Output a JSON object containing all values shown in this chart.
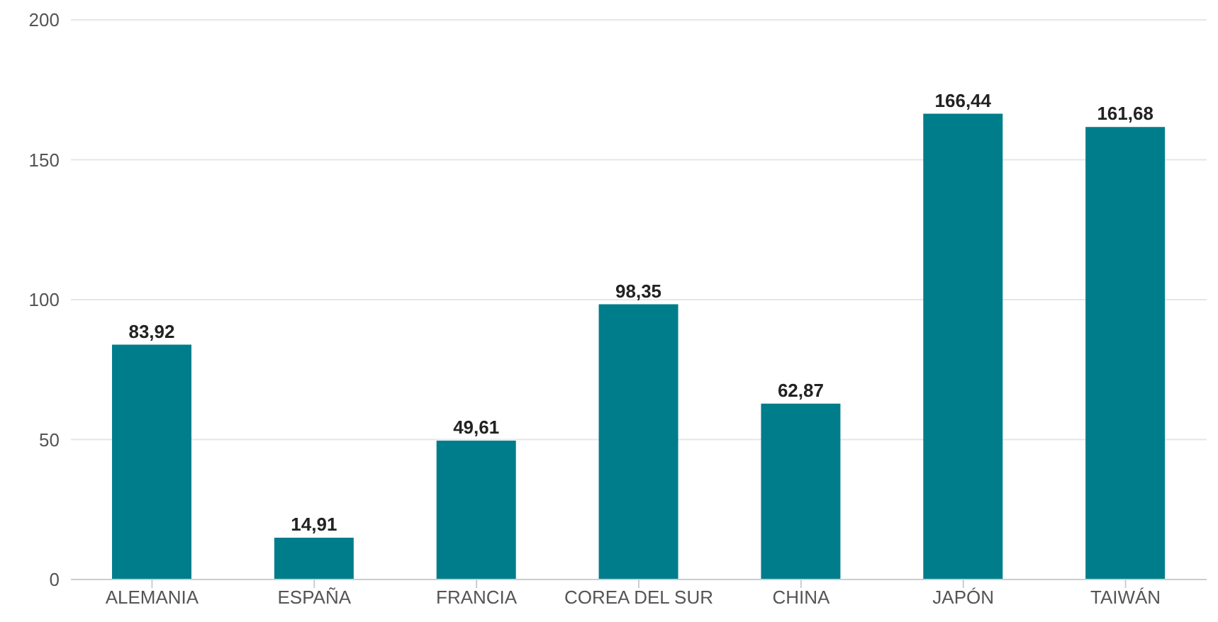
{
  "chart_data": {
    "type": "bar",
    "categories": [
      "ALEMANIA",
      "ESPAÑA",
      "FRANCIA",
      "COREA DEL SUR",
      "CHINA",
      "JAPÓN",
      "TAIWÁN"
    ],
    "values": [
      83.92,
      14.91,
      49.61,
      98.35,
      62.87,
      166.44,
      161.68
    ],
    "value_labels": [
      "83,92",
      "14,91",
      "49,61",
      "98,35",
      "62,87",
      "166,44",
      "161,68"
    ],
    "color": "#007d8a",
    "ylim": [
      0,
      200
    ],
    "yticks": [
      0,
      50,
      100,
      150,
      200
    ],
    "grid": "y"
  }
}
